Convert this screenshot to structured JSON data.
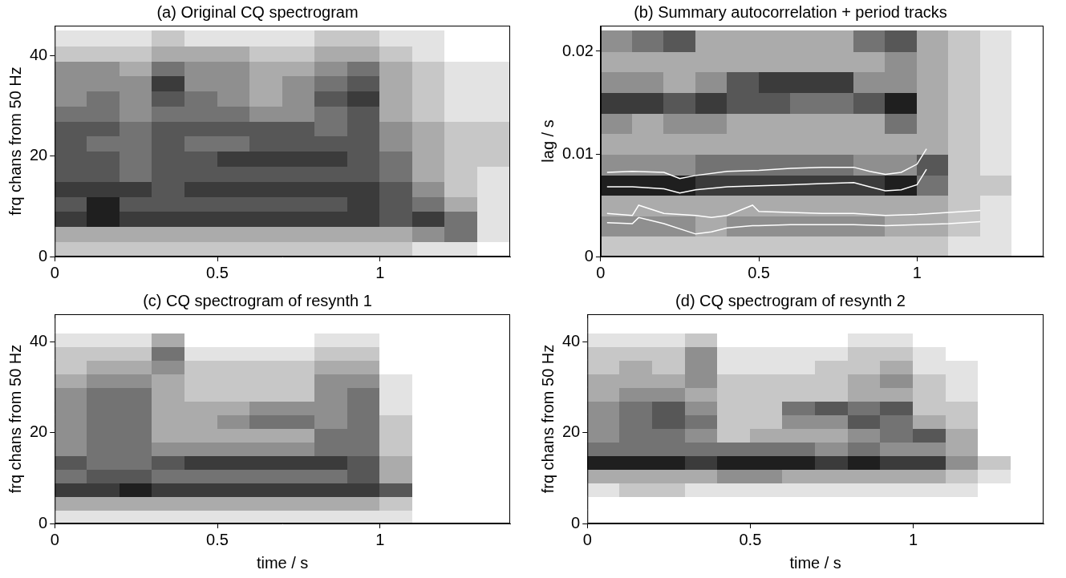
{
  "chart_data": [
    {
      "type": "heatmap",
      "title": "(a) Original CQ spectrogram",
      "y_label": "frq chans from 50 Hz",
      "xlim": [
        0,
        1.4
      ],
      "xticks": [
        0,
        0.5,
        1
      ],
      "ylim": [
        0,
        46
      ],
      "yticks": [
        0,
        20,
        40
      ],
      "cells": {
        "x": [
          0,
          0.1,
          0.2,
          0.3,
          0.4,
          0.5,
          0.6,
          0.7,
          0.8,
          0.9,
          1.0,
          1.1,
          1.2,
          1.3,
          1.4
        ],
        "y": [
          0,
          3,
          6,
          9,
          12,
          15,
          18,
          21,
          24,
          27,
          30,
          33,
          36,
          39,
          42,
          45
        ],
        "values": [
          [
            2,
            2,
            2,
            2,
            2,
            2,
            2,
            2,
            2,
            2,
            2,
            1,
            1,
            0
          ],
          [
            3,
            3,
            3,
            3,
            3,
            3,
            3,
            3,
            3,
            3,
            3,
            4,
            5,
            1
          ],
          [
            7,
            8,
            7,
            7,
            7,
            7,
            7,
            7,
            7,
            7,
            6,
            7,
            5,
            1
          ],
          [
            6,
            8,
            6,
            6,
            6,
            6,
            6,
            6,
            6,
            7,
            6,
            5,
            3,
            1
          ],
          [
            7,
            7,
            7,
            6,
            7,
            7,
            7,
            7,
            7,
            7,
            6,
            4,
            2,
            1
          ],
          [
            6,
            6,
            5,
            6,
            6,
            6,
            6,
            6,
            6,
            6,
            5,
            3,
            2,
            1
          ],
          [
            6,
            6,
            5,
            6,
            6,
            7,
            7,
            7,
            7,
            6,
            5,
            3,
            2,
            2
          ],
          [
            6,
            5,
            5,
            6,
            5,
            5,
            6,
            6,
            6,
            6,
            4,
            3,
            2,
            2
          ],
          [
            6,
            6,
            5,
            6,
            6,
            6,
            6,
            6,
            5,
            6,
            4,
            3,
            2,
            2
          ],
          [
            5,
            5,
            4,
            5,
            5,
            5,
            4,
            4,
            5,
            6,
            3,
            2,
            1,
            1
          ],
          [
            4,
            5,
            4,
            6,
            5,
            4,
            3,
            4,
            6,
            7,
            3,
            2,
            1,
            1
          ],
          [
            4,
            4,
            4,
            7,
            4,
            4,
            3,
            4,
            5,
            6,
            3,
            2,
            1,
            1
          ],
          [
            4,
            4,
            3,
            5,
            4,
            4,
            3,
            3,
            4,
            5,
            3,
            2,
            1,
            1
          ],
          [
            2,
            2,
            2,
            3,
            3,
            3,
            2,
            2,
            3,
            3,
            2,
            1,
            0,
            0
          ],
          [
            1,
            1,
            1,
            2,
            1,
            1,
            1,
            1,
            2,
            2,
            1,
            1,
            0,
            0
          ]
        ]
      }
    },
    {
      "type": "heatmap",
      "title": "(b) Summary autocorrelation + period tracks",
      "y_label": "lag / s",
      "xlim": [
        0,
        1.4
      ],
      "xticks": [
        0,
        0.5,
        1
      ],
      "ylim": [
        0,
        0.0225
      ],
      "yticks": [
        0,
        0.01,
        0.02
      ],
      "cells": {
        "x": [
          0,
          0.1,
          0.2,
          0.3,
          0.4,
          0.5,
          0.6,
          0.7,
          0.8,
          0.9,
          1.0,
          1.1,
          1.2,
          1.3,
          1.4
        ],
        "y": [
          0,
          0.002,
          0.004,
          0.006,
          0.008,
          0.01,
          0.012,
          0.014,
          0.016,
          0.018,
          0.02,
          0.022
        ],
        "values": [
          [
            2,
            2,
            2,
            2,
            2,
            2,
            2,
            2,
            2,
            2,
            2,
            1,
            1,
            0
          ],
          [
            4,
            4,
            4,
            3,
            4,
            4,
            4,
            4,
            4,
            3,
            3,
            2,
            1,
            0
          ],
          [
            3,
            3,
            3,
            3,
            3,
            3,
            3,
            3,
            3,
            3,
            3,
            2,
            1,
            0
          ],
          [
            8,
            8,
            8,
            7,
            7,
            7,
            7,
            7,
            7,
            8,
            5,
            2,
            2,
            0
          ],
          [
            4,
            4,
            4,
            5,
            5,
            5,
            5,
            5,
            4,
            4,
            6,
            2,
            1,
            0
          ],
          [
            3,
            3,
            3,
            3,
            3,
            3,
            3,
            3,
            3,
            3,
            3,
            2,
            1,
            0
          ],
          [
            4,
            3,
            4,
            4,
            3,
            3,
            3,
            3,
            3,
            5,
            3,
            2,
            1,
            0
          ],
          [
            7,
            7,
            6,
            7,
            6,
            6,
            5,
            5,
            6,
            8,
            3,
            2,
            1,
            0
          ],
          [
            4,
            4,
            3,
            4,
            6,
            7,
            7,
            7,
            4,
            4,
            3,
            2,
            1,
            0
          ],
          [
            3,
            3,
            3,
            3,
            3,
            3,
            3,
            3,
            3,
            4,
            3,
            2,
            1,
            0
          ],
          [
            4,
            5,
            6,
            3,
            3,
            3,
            3,
            3,
            5,
            6,
            3,
            2,
            1,
            0
          ]
        ]
      },
      "series": [
        {
          "type": "line",
          "color": "#ffffff",
          "x": [
            0.02,
            0.1,
            0.2,
            0.25,
            0.3,
            0.4,
            0.5,
            0.6,
            0.7,
            0.8,
            0.85,
            0.9,
            0.95,
            1.0,
            1.03
          ],
          "values": [
            0.0082,
            0.0083,
            0.0082,
            0.0076,
            0.0079,
            0.0083,
            0.0084,
            0.0086,
            0.0087,
            0.0087,
            0.0083,
            0.008,
            0.0082,
            0.009,
            0.0105
          ]
        },
        {
          "type": "line",
          "color": "#ffffff",
          "x": [
            0.02,
            0.1,
            0.2,
            0.25,
            0.3,
            0.4,
            0.5,
            0.6,
            0.7,
            0.8,
            0.85,
            0.9,
            0.95,
            1.0,
            1.03
          ],
          "values": [
            0.0068,
            0.0068,
            0.0066,
            0.0062,
            0.0065,
            0.0068,
            0.0069,
            0.007,
            0.0071,
            0.0072,
            0.0068,
            0.0064,
            0.0065,
            0.007,
            0.0085
          ]
        },
        {
          "type": "line",
          "color": "#ffffff",
          "x": [
            0.02,
            0.1,
            0.12,
            0.2,
            0.3,
            0.35,
            0.4,
            0.48,
            0.5,
            0.6,
            0.7,
            0.8,
            0.9,
            1.0,
            1.1,
            1.2
          ],
          "values": [
            0.0042,
            0.004,
            0.005,
            0.0042,
            0.004,
            0.0038,
            0.004,
            0.005,
            0.0044,
            0.0043,
            0.0042,
            0.0042,
            0.004,
            0.0041,
            0.0043,
            0.0045
          ]
        },
        {
          "type": "line",
          "color": "#ffffff",
          "x": [
            0.02,
            0.1,
            0.12,
            0.2,
            0.3,
            0.35,
            0.4,
            0.48,
            0.5,
            0.6,
            0.7,
            0.8,
            0.9,
            1.0,
            1.1,
            1.2
          ],
          "values": [
            0.0033,
            0.0032,
            0.0038,
            0.0032,
            0.0022,
            0.0024,
            0.0028,
            0.003,
            0.003,
            0.0031,
            0.0031,
            0.0031,
            0.003,
            0.0031,
            0.0032,
            0.0034
          ]
        }
      ]
    },
    {
      "type": "heatmap",
      "title": "(c) CQ spectrogram of resynth 1",
      "x_label": "time / s",
      "y_label": "frq chans from 50 Hz",
      "xlim": [
        0,
        1.4
      ],
      "xticks": [
        0,
        0.5,
        1
      ],
      "ylim": [
        0,
        46
      ],
      "yticks": [
        0,
        20,
        40
      ],
      "cells": {
        "x": [
          0,
          0.1,
          0.2,
          0.3,
          0.4,
          0.5,
          0.6,
          0.7,
          0.8,
          0.9,
          1.0,
          1.1,
          1.2,
          1.3,
          1.4
        ],
        "y": [
          0,
          3,
          6,
          9,
          12,
          15,
          18,
          21,
          24,
          27,
          30,
          33,
          36,
          39,
          42,
          45
        ],
        "values": [
          [
            1,
            1,
            1,
            1,
            1,
            1,
            1,
            1,
            1,
            1,
            1,
            0,
            0,
            0
          ],
          [
            3,
            3,
            3,
            3,
            3,
            3,
            3,
            3,
            3,
            3,
            2,
            0,
            0,
            0
          ],
          [
            7,
            7,
            8,
            7,
            7,
            7,
            7,
            7,
            7,
            7,
            6,
            0,
            0,
            0
          ],
          [
            5,
            6,
            6,
            5,
            5,
            5,
            5,
            5,
            5,
            6,
            3,
            0,
            0,
            0
          ],
          [
            6,
            5,
            5,
            6,
            7,
            7,
            7,
            7,
            7,
            6,
            3,
            0,
            0,
            0
          ],
          [
            4,
            5,
            5,
            4,
            4,
            4,
            4,
            4,
            5,
            5,
            2,
            0,
            0,
            0
          ],
          [
            4,
            5,
            5,
            3,
            3,
            3,
            3,
            3,
            5,
            5,
            2,
            0,
            0,
            0
          ],
          [
            4,
            5,
            5,
            3,
            3,
            4,
            5,
            5,
            4,
            5,
            2,
            0,
            0,
            0
          ],
          [
            4,
            5,
            5,
            3,
            3,
            3,
            4,
            4,
            4,
            5,
            1,
            0,
            0,
            0
          ],
          [
            4,
            5,
            5,
            3,
            2,
            2,
            2,
            2,
            4,
            5,
            1,
            0,
            0,
            0
          ],
          [
            3,
            4,
            4,
            3,
            2,
            2,
            2,
            2,
            4,
            4,
            1,
            0,
            0,
            0
          ],
          [
            2,
            3,
            3,
            4,
            2,
            2,
            2,
            2,
            3,
            3,
            0,
            0,
            0,
            0
          ],
          [
            2,
            2,
            2,
            5,
            1,
            1,
            1,
            1,
            2,
            2,
            0,
            0,
            0,
            0
          ],
          [
            1,
            1,
            1,
            3,
            0,
            0,
            0,
            0,
            1,
            1,
            0,
            0,
            0,
            0
          ],
          [
            0,
            0,
            0,
            0,
            0,
            0,
            0,
            0,
            0,
            0,
            0,
            0,
            0,
            0
          ]
        ]
      }
    },
    {
      "type": "heatmap",
      "title": "(d) CQ spectrogram of resynth 2",
      "x_label": "time / s",
      "y_label": "frq chans from 50 Hz",
      "xlim": [
        0,
        1.4
      ],
      "xticks": [
        0,
        0.5,
        1
      ],
      "ylim": [
        0,
        46
      ],
      "yticks": [
        0,
        20,
        40
      ],
      "cells": {
        "x": [
          0,
          0.1,
          0.2,
          0.3,
          0.4,
          0.5,
          0.6,
          0.7,
          0.8,
          0.9,
          1.0,
          1.1,
          1.2,
          1.3,
          1.4
        ],
        "y": [
          0,
          3,
          6,
          9,
          12,
          15,
          18,
          21,
          24,
          27,
          30,
          33,
          36,
          39,
          42,
          45
        ],
        "values": [
          [
            0,
            0,
            0,
            0,
            0,
            0,
            0,
            0,
            0,
            0,
            0,
            0,
            0,
            0
          ],
          [
            0,
            0,
            0,
            0,
            0,
            0,
            0,
            0,
            0,
            0,
            0,
            0,
            0,
            0
          ],
          [
            1,
            2,
            2,
            1,
            1,
            1,
            1,
            1,
            1,
            1,
            1,
            1,
            0,
            0
          ],
          [
            3,
            3,
            3,
            3,
            4,
            4,
            3,
            3,
            3,
            3,
            3,
            2,
            1,
            0
          ],
          [
            8,
            8,
            8,
            7,
            8,
            8,
            8,
            7,
            8,
            7,
            7,
            4,
            2,
            0
          ],
          [
            5,
            5,
            5,
            5,
            5,
            5,
            5,
            4,
            5,
            4,
            4,
            3,
            0,
            0
          ],
          [
            4,
            5,
            5,
            4,
            2,
            3,
            3,
            3,
            4,
            5,
            6,
            3,
            0,
            0
          ],
          [
            4,
            5,
            6,
            5,
            2,
            2,
            4,
            4,
            6,
            5,
            3,
            2,
            0,
            0
          ],
          [
            4,
            5,
            6,
            4,
            2,
            2,
            5,
            6,
            5,
            6,
            2,
            2,
            0,
            0
          ],
          [
            3,
            4,
            4,
            3,
            2,
            2,
            2,
            2,
            3,
            3,
            2,
            1,
            0,
            0
          ],
          [
            3,
            3,
            3,
            4,
            2,
            2,
            2,
            2,
            3,
            4,
            2,
            1,
            0,
            0
          ],
          [
            2,
            3,
            2,
            4,
            1,
            1,
            1,
            2,
            2,
            3,
            1,
            1,
            0,
            0
          ],
          [
            2,
            2,
            2,
            4,
            1,
            1,
            1,
            1,
            2,
            2,
            1,
            0,
            0,
            0
          ],
          [
            1,
            1,
            1,
            2,
            0,
            0,
            0,
            0,
            1,
            1,
            0,
            0,
            0,
            0
          ],
          [
            0,
            0,
            0,
            0,
            0,
            0,
            0,
            0,
            0,
            0,
            0,
            0,
            0,
            0
          ]
        ]
      }
    }
  ]
}
